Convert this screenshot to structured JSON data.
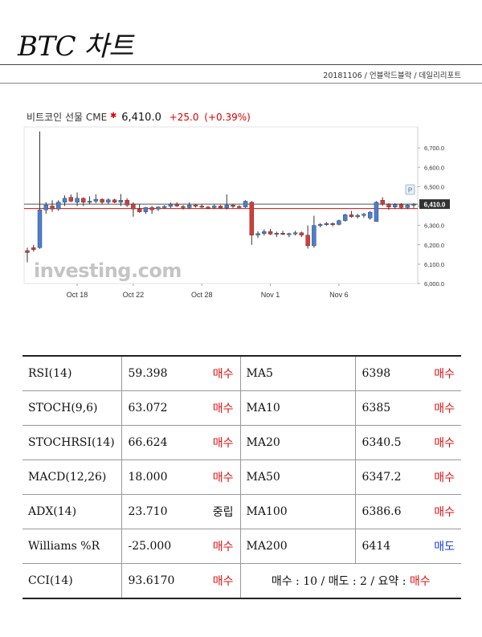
{
  "title": "BTC 차트",
  "subline": "20181106 / 언블락드블락 / 데일리리포트",
  "chart_data": {
    "type": "candlestick",
    "instrument": "비트코인 선물 CME",
    "price": "6,410.0",
    "change": "+25.0",
    "change_pct": "(+0.39%)",
    "watermark": "investing.com",
    "price_tag": "6,410.0",
    "marker_label": "P",
    "ylim": [
      6000,
      6800
    ],
    "yticks": [
      "6,000.0",
      "6,100.0",
      "6,200.0",
      "6,300.0",
      "6,400.0",
      "6,500.0",
      "6,600.0",
      "6,700.0"
    ],
    "x_dates": [
      "Oct 18",
      "Oct 22",
      "Oct 28",
      "Nov 1",
      "Nov 6"
    ],
    "x_date_index": [
      8,
      17,
      28,
      39,
      50
    ],
    "reference_lines": [
      {
        "value": 6410,
        "color": "#555555"
      },
      {
        "value": 6387,
        "color": "#d01010"
      }
    ],
    "candles": [
      {
        "o": 6170,
        "h": 6185,
        "l": 6110,
        "c": 6160
      },
      {
        "o": 6185,
        "h": 6200,
        "l": 6165,
        "c": 6175
      },
      {
        "o": 6185,
        "h": 6785,
        "l": 6180,
        "c": 6380
      },
      {
        "o": 6380,
        "h": 6420,
        "l": 6360,
        "c": 6405
      },
      {
        "o": 6400,
        "h": 6430,
        "l": 6370,
        "c": 6385
      },
      {
        "o": 6385,
        "h": 6430,
        "l": 6375,
        "c": 6420
      },
      {
        "o": 6420,
        "h": 6455,
        "l": 6400,
        "c": 6440
      },
      {
        "o": 6445,
        "h": 6460,
        "l": 6420,
        "c": 6425
      },
      {
        "o": 6420,
        "h": 6470,
        "l": 6400,
        "c": 6440
      },
      {
        "o": 6440,
        "h": 6445,
        "l": 6400,
        "c": 6420
      },
      {
        "o": 6420,
        "h": 6450,
        "l": 6410,
        "c": 6425
      },
      {
        "o": 6425,
        "h": 6460,
        "l": 6415,
        "c": 6435
      },
      {
        "o": 6435,
        "h": 6440,
        "l": 6410,
        "c": 6420
      },
      {
        "o": 6420,
        "h": 6440,
        "l": 6410,
        "c": 6432
      },
      {
        "o": 6432,
        "h": 6438,
        "l": 6415,
        "c": 6420
      },
      {
        "o": 6420,
        "h": 6462,
        "l": 6400,
        "c": 6430
      },
      {
        "o": 6430,
        "h": 6440,
        "l": 6395,
        "c": 6405
      },
      {
        "o": 6410,
        "h": 6420,
        "l": 6345,
        "c": 6385
      },
      {
        "o": 6385,
        "h": 6410,
        "l": 6365,
        "c": 6370
      },
      {
        "o": 6370,
        "h": 6395,
        "l": 6360,
        "c": 6392
      },
      {
        "o": 6392,
        "h": 6400,
        "l": 6360,
        "c": 6380
      },
      {
        "o": 6385,
        "h": 6398,
        "l": 6375,
        "c": 6395
      },
      {
        "o": 6395,
        "h": 6405,
        "l": 6385,
        "c": 6398
      },
      {
        "o": 6398,
        "h": 6418,
        "l": 6390,
        "c": 6410
      },
      {
        "o": 6410,
        "h": 6420,
        "l": 6395,
        "c": 6400
      },
      {
        "o": 6398,
        "h": 6405,
        "l": 6382,
        "c": 6392
      },
      {
        "o": 6392,
        "h": 6420,
        "l": 6385,
        "c": 6405
      },
      {
        "o": 6405,
        "h": 6410,
        "l": 6392,
        "c": 6400
      },
      {
        "o": 6400,
        "h": 6408,
        "l": 6390,
        "c": 6395
      },
      {
        "o": 6395,
        "h": 6400,
        "l": 6385,
        "c": 6392
      },
      {
        "o": 6392,
        "h": 6408,
        "l": 6385,
        "c": 6400
      },
      {
        "o": 6400,
        "h": 6405,
        "l": 6388,
        "c": 6390
      },
      {
        "o": 6390,
        "h": 6460,
        "l": 6382,
        "c": 6405
      },
      {
        "o": 6405,
        "h": 6410,
        "l": 6390,
        "c": 6398
      },
      {
        "o": 6398,
        "h": 6404,
        "l": 6390,
        "c": 6395
      },
      {
        "o": 6395,
        "h": 6430,
        "l": 6390,
        "c": 6425
      },
      {
        "o": 6420,
        "h": 6425,
        "l": 6200,
        "c": 6250
      },
      {
        "o": 6250,
        "h": 6270,
        "l": 6235,
        "c": 6258
      },
      {
        "o": 6258,
        "h": 6280,
        "l": 6248,
        "c": 6268
      },
      {
        "o": 6268,
        "h": 6282,
        "l": 6250,
        "c": 6255
      },
      {
        "o": 6255,
        "h": 6268,
        "l": 6240,
        "c": 6260
      },
      {
        "o": 6260,
        "h": 6272,
        "l": 6250,
        "c": 6255
      },
      {
        "o": 6255,
        "h": 6262,
        "l": 6240,
        "c": 6258
      },
      {
        "o": 6258,
        "h": 6272,
        "l": 6248,
        "c": 6262
      },
      {
        "o": 6262,
        "h": 6268,
        "l": 6240,
        "c": 6250
      },
      {
        "o": 6250,
        "h": 6300,
        "l": 6180,
        "c": 6195
      },
      {
        "o": 6195,
        "h": 6350,
        "l": 6185,
        "c": 6300
      },
      {
        "o": 6300,
        "h": 6312,
        "l": 6290,
        "c": 6305
      },
      {
        "o": 6305,
        "h": 6318,
        "l": 6298,
        "c": 6310
      },
      {
        "o": 6310,
        "h": 6315,
        "l": 6295,
        "c": 6305
      },
      {
        "o": 6305,
        "h": 6330,
        "l": 6300,
        "c": 6325
      },
      {
        "o": 6325,
        "h": 6360,
        "l": 6320,
        "c": 6355
      },
      {
        "o": 6355,
        "h": 6375,
        "l": 6340,
        "c": 6345
      },
      {
        "o": 6345,
        "h": 6360,
        "l": 6335,
        "c": 6352
      },
      {
        "o": 6352,
        "h": 6365,
        "l": 6340,
        "c": 6358
      },
      {
        "o": 6338,
        "h": 6375,
        "l": 6330,
        "c": 6368
      },
      {
        "o": 6320,
        "h": 6425,
        "l": 6320,
        "c": 6420
      },
      {
        "o": 6430,
        "h": 6445,
        "l": 6400,
        "c": 6410
      },
      {
        "o": 6410,
        "h": 6415,
        "l": 6380,
        "c": 6395
      },
      {
        "o": 6395,
        "h": 6415,
        "l": 6385,
        "c": 6408
      },
      {
        "o": 6408,
        "h": 6415,
        "l": 6385,
        "c": 6392
      },
      {
        "o": 6392,
        "h": 6412,
        "l": 6385,
        "c": 6405
      },
      {
        "o": 6405,
        "h": 6415,
        "l": 6390,
        "c": 6410
      }
    ]
  },
  "indicators": [
    {
      "name": "RSI(14)",
      "value": "59.398",
      "signal": "매수",
      "signal_type": "buy",
      "ma_name": "MA5",
      "ma_value": "6398",
      "ma_signal": "매수",
      "ma_signal_type": "buy"
    },
    {
      "name": "STOCH(9,6)",
      "value": "63.072",
      "signal": "매수",
      "signal_type": "buy",
      "ma_name": "MA10",
      "ma_value": "6385",
      "ma_signal": "매수",
      "ma_signal_type": "buy"
    },
    {
      "name": "STOCHRSI(14)",
      "value": "66.624",
      "signal": "매수",
      "signal_type": "buy",
      "ma_name": "MA20",
      "ma_value": "6340.5",
      "ma_signal": "매수",
      "ma_signal_type": "buy"
    },
    {
      "name": "MACD(12,26)",
      "value": "18.000",
      "signal": "매수",
      "signal_type": "buy",
      "ma_name": "MA50",
      "ma_value": "6347.2",
      "ma_signal": "매수",
      "ma_signal_type": "buy"
    },
    {
      "name": "ADX(14)",
      "value": "23.710",
      "signal": "중립",
      "signal_type": "neutral",
      "ma_name": "MA100",
      "ma_value": "6386.6",
      "ma_signal": "매수",
      "ma_signal_type": "buy"
    },
    {
      "name": "Williams %R",
      "value": "-25.000",
      "signal": "매수",
      "signal_type": "buy",
      "ma_name": "MA200",
      "ma_value": "6414",
      "ma_signal": "매도",
      "ma_signal_type": "sell"
    }
  ],
  "last_row": {
    "name": "CCI(14)",
    "value": "93.6170",
    "signal": "매수",
    "signal_type": "buy"
  },
  "summary": {
    "text": "매수 : 10 / 매도 : 2 / 요약 : ",
    "result": "매수"
  },
  "colors": {
    "up": "#4a7fd1",
    "down": "#d83a35",
    "buy": "#e01414",
    "sell": "#1a3fd6"
  }
}
